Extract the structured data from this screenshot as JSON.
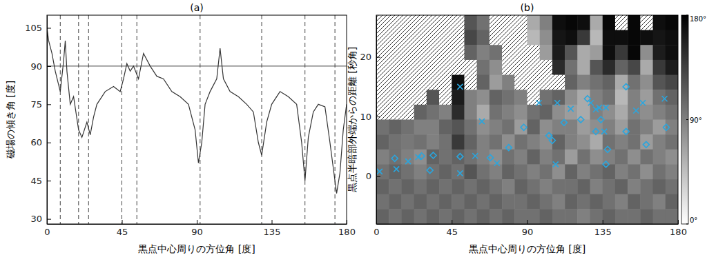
{
  "chart_data": [
    {
      "type": "line",
      "title": "(a)",
      "x_label": "黒点中心周りの方位角 [度]",
      "y_label": "磁場の傾き角 [度]",
      "xlim": [
        0,
        180
      ],
      "xticks": [
        0,
        45,
        90,
        135,
        180
      ],
      "ylim": [
        28,
        110
      ],
      "yticks": [
        30,
        45,
        60,
        75,
        90,
        105
      ],
      "x": [
        0,
        1,
        3,
        5,
        8,
        10,
        11,
        12,
        14,
        16,
        19,
        21,
        24,
        26,
        28,
        30,
        35,
        40,
        44,
        46,
        48,
        50,
        52,
        55,
        58,
        62,
        66,
        70,
        75,
        80,
        85,
        89,
        91,
        93,
        95,
        98,
        102,
        104,
        106,
        110,
        115,
        120,
        124,
        127,
        129,
        132,
        135,
        140,
        145,
        150,
        153,
        155,
        157,
        160,
        163,
        167,
        170,
        172,
        174,
        176,
        178,
        180
      ],
      "series": [
        {
          "color": "#333333",
          "values": [
            105,
            100,
            95,
            88,
            80,
            92,
            100,
            88,
            75,
            78,
            65,
            62,
            68,
            63,
            70,
            75,
            80,
            82,
            80,
            85,
            91,
            88,
            90,
            85,
            95,
            90,
            86,
            85,
            80,
            78,
            75,
            65,
            52,
            60,
            75,
            80,
            85,
            97,
            85,
            80,
            78,
            75,
            72,
            60,
            55,
            68,
            75,
            80,
            78,
            75,
            60,
            45,
            62,
            72,
            75,
            74,
            60,
            50,
            40,
            48,
            65,
            75
          ]
        }
      ],
      "hlines": [
        90
      ],
      "vlines": [
        8,
        19,
        25,
        45,
        54,
        92,
        129,
        155,
        173
      ]
    },
    {
      "type": "heatmap",
      "title": "(b)",
      "x_label": "黒点中心周りの方位角 [度]",
      "y_label": "黒点半暗部外端からの距離 [秒角]",
      "xlim": [
        0,
        180
      ],
      "xticks": [
        0,
        45,
        90,
        135,
        180
      ],
      "ylim": [
        -8,
        27
      ],
      "yticks": [
        0,
        10,
        20
      ],
      "x_edges": [
        0,
        7.5,
        15,
        22.5,
        30,
        37.5,
        45,
        52.5,
        60,
        67.5,
        75,
        82.5,
        90,
        97.5,
        105,
        112.5,
        120,
        127.5,
        135,
        142.5,
        150,
        157.5,
        165,
        172.5,
        180
      ],
      "y_edges": [
        27,
        24.5,
        22,
        19.5,
        17,
        14.5,
        12,
        9.5,
        7,
        4.5,
        2,
        -0.5,
        -3,
        -5.5,
        -8
      ],
      "cells": [
        [
          null,
          null,
          null,
          null,
          null,
          null,
          null,
          120,
          100,
          null,
          null,
          null,
          60,
          90,
          170,
          175,
          170,
          60,
          175,
          null,
          175,
          null,
          170,
          175
        ],
        [
          null,
          null,
          null,
          null,
          null,
          null,
          null,
          130,
          110,
          null,
          null,
          null,
          50,
          80,
          165,
          170,
          140,
          50,
          170,
          170,
          175,
          170,
          165,
          170
        ],
        [
          null,
          null,
          null,
          null,
          null,
          null,
          null,
          110,
          90,
          100,
          null,
          null,
          null,
          70,
          160,
          120,
          60,
          70,
          170,
          140,
          175,
          80,
          160,
          170
        ],
        [
          null,
          null,
          null,
          null,
          null,
          null,
          null,
          null,
          100,
          80,
          null,
          null,
          null,
          null,
          150,
          100,
          60,
          120,
          150,
          110,
          130,
          60,
          140,
          160
        ],
        [
          null,
          null,
          null,
          null,
          null,
          null,
          170,
          null,
          110,
          70,
          90,
          null,
          null,
          null,
          null,
          110,
          90,
          100,
          110,
          60,
          100,
          80,
          120,
          130
        ],
        [
          null,
          null,
          null,
          null,
          120,
          null,
          160,
          90,
          80,
          110,
          100,
          90,
          null,
          100,
          110,
          80,
          60,
          90,
          100,
          50,
          90,
          70,
          100,
          110
        ],
        [
          null,
          null,
          null,
          110,
          100,
          90,
          150,
          90,
          60,
          100,
          90,
          80,
          100,
          110,
          80,
          70,
          60,
          90,
          80,
          60,
          90,
          80,
          90,
          100
        ],
        [
          100,
          110,
          100,
          90,
          90,
          110,
          120,
          100,
          80,
          90,
          100,
          70,
          110,
          80,
          90,
          90,
          70,
          80,
          90,
          70,
          100,
          90,
          70,
          90
        ],
        [
          110,
          100,
          95,
          100,
          90,
          100,
          140,
          110,
          90,
          100,
          80,
          100,
          90,
          80,
          110,
          90,
          80,
          60,
          100,
          90,
          100,
          70,
          90,
          100
        ],
        [
          90,
          100,
          90,
          80,
          110,
          100,
          110,
          100,
          90,
          80,
          100,
          90,
          110,
          90,
          100,
          70,
          100,
          80,
          90,
          100,
          80,
          100,
          90,
          80
        ],
        [
          100,
          110,
          100,
          90,
          100,
          110,
          100,
          120,
          100,
          90,
          110,
          100,
          90,
          100,
          80,
          110,
          90,
          100,
          110,
          90,
          100,
          80,
          100,
          90
        ],
        [
          110,
          100,
          110,
          100,
          110,
          100,
          110,
          100,
          110,
          100,
          90,
          110,
          100,
          90,
          100,
          100,
          110,
          90,
          100,
          110,
          90,
          100,
          110,
          100
        ],
        [
          100,
          110,
          100,
          110,
          100,
          110,
          100,
          110,
          100,
          110,
          100,
          100,
          110,
          100,
          90,
          110,
          100,
          110,
          100,
          90,
          110,
          100,
          90,
          110
        ],
        [
          110,
          100,
          110,
          100,
          110,
          100,
          110,
          100,
          110,
          100,
          110,
          100,
          100,
          110,
          100,
          100,
          90,
          100,
          110,
          100,
          100,
          110,
          100,
          100
        ]
      ],
      "color_range": [
        0,
        180
      ],
      "color_ticks": [
        {
          "value": 0,
          "label": "0°"
        },
        {
          "value": 90,
          "label": "90°"
        },
        {
          "value": 180,
          "label": "180°"
        }
      ],
      "series": [
        {
          "type": "scatter",
          "marker": "x",
          "color": "#29a6df",
          "x": [
            2,
            12,
            19,
            25,
            50,
            50,
            59,
            63,
            72,
            97,
            107,
            108,
            116,
            128,
            131,
            133,
            137,
            136,
            155,
            159,
            172
          ],
          "values": [
            0.8,
            1.2,
            2.5,
            3.2,
            0.5,
            15,
            3.4,
            9.2,
            2.2,
            12.3,
            2,
            12.3,
            11.3,
            12.3,
            11.2,
            11.5,
            11.5,
            7.5,
            11,
            12.3,
            13
          ]
        },
        {
          "type": "scatter",
          "marker": "diamond",
          "color": "#29a6df",
          "x": [
            11,
            27,
            32,
            34,
            50,
            68,
            79,
            88,
            103,
            105,
            112,
            122,
            126,
            131,
            134,
            138,
            137,
            149,
            149,
            161,
            173
          ],
          "values": [
            3,
            3.4,
            1,
            3.5,
            3.3,
            3.1,
            4.8,
            8.2,
            6.8,
            6,
            9,
            9.5,
            13,
            7.5,
            9.5,
            4.5,
            2,
            7.5,
            15,
            5.3,
            8.2
          ]
        }
      ]
    }
  ]
}
